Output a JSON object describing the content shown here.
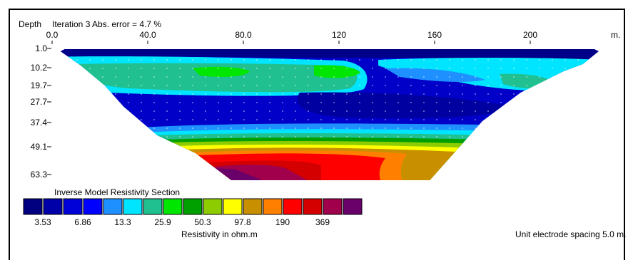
{
  "chart_data": {
    "type": "heatmap",
    "title": "Iteration 3 Abs. error = 4.7 %",
    "ylabel": "Depth",
    "xlabel": "m.",
    "x_ticks": [
      0.0,
      40.0,
      80.0,
      120,
      160,
      200
    ],
    "x_tick_labels": [
      "0.0",
      "40.0",
      "80.0",
      "120",
      "160",
      "200"
    ],
    "depth_ticks": [
      1.0,
      10.2,
      19.7,
      27.7,
      37.4,
      49.1,
      63.3
    ],
    "depth_tick_labels": [
      "1.0",
      "10.2",
      "19.7",
      "27.7",
      "37.4",
      "49.1",
      "63.3"
    ],
    "x_range": [
      0,
      230
    ],
    "depth_range": [
      1.0,
      63.3
    ],
    "section_outline_x_at_depth": {
      "top": [
        3.5,
        228
      ],
      "bottom": [
        75,
        158
      ]
    },
    "legend_title": "Inverse Model Resistivity Section",
    "legend_units_label": "Resistivity in ohm.m",
    "legend_colors": [
      "#000080",
      "#0000a8",
      "#0000d8",
      "#0000ff",
      "#1e90ff",
      "#00e5ff",
      "#20c090",
      "#00e600",
      "#00a000",
      "#8ccc00",
      "#ffff00",
      "#c89000",
      "#ff8000",
      "#ff0000",
      "#d40000",
      "#a0004c",
      "#6a006a"
    ],
    "legend_values": [
      "3.53",
      "6.86",
      "13.3",
      "25.9",
      "50.3",
      "97.8",
      "190",
      "369"
    ],
    "electrode_spacing_note": "Unit electrode spacing 5.0 m."
  }
}
